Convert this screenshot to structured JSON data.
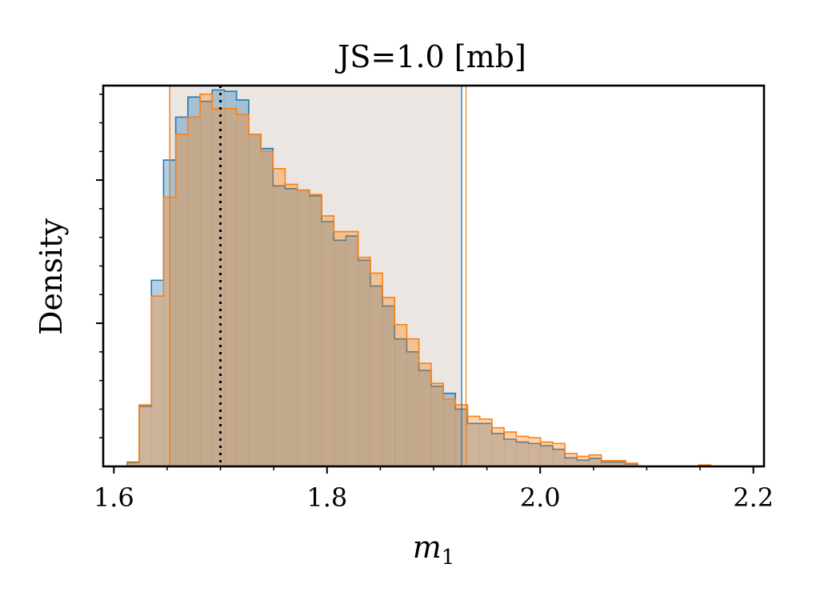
{
  "chart_data": {
    "type": "histogram",
    "title": "JS=1.0 [mb]",
    "xlabel": "m",
    "xlabel_subscript": "1",
    "ylabel": "Density",
    "xlim": [
      1.59,
      2.21
    ],
    "ylim": [
      0,
      13.3
    ],
    "xticks": [
      {
        "value": 1.6,
        "label": "1.6"
      },
      {
        "value": 1.8,
        "label": "1.8"
      },
      {
        "value": 2.0,
        "label": "2.0"
      },
      {
        "value": 2.2,
        "label": "2.2"
      }
    ],
    "x_minor_step": 0.05,
    "y_major_ticks": [
      5,
      10
    ],
    "y_minor_step": 1.0,
    "y_tick_labels_shown": false,
    "bin_start": 1.6124,
    "bin_width": 0.01141,
    "series": [
      {
        "color": "#1f77b4",
        "fill_opacity": 0.35,
        "values": [
          0.15,
          2.1,
          6.5,
          10.7,
          12.2,
          12.9,
          12.75,
          13.15,
          13.1,
          12.8,
          11.6,
          11.1,
          9.8,
          9.7,
          9.65,
          9.45,
          8.55,
          7.9,
          8.05,
          7.2,
          6.3,
          5.6,
          4.45,
          4.0,
          3.35,
          2.8,
          2.55,
          2.0,
          1.5,
          1.5,
          1.15,
          0.95,
          0.85,
          0.8,
          0.72,
          0.6,
          0.3,
          0.22,
          0.28,
          0.15,
          0.15,
          0.09,
          0.0,
          0.0,
          0.0,
          0.0,
          0.0,
          0.02
        ]
      },
      {
        "color": "#ff7f0e",
        "fill_opacity": 0.35,
        "values": [
          0.12,
          2.15,
          5.95,
          9.4,
          11.6,
          12.2,
          13.0,
          12.5,
          12.5,
          12.3,
          11.6,
          11.0,
          10.4,
          9.85,
          9.65,
          9.5,
          8.75,
          8.2,
          8.2,
          7.3,
          6.75,
          5.9,
          4.95,
          4.45,
          3.6,
          2.9,
          2.35,
          2.15,
          1.75,
          1.65,
          1.35,
          1.2,
          1.05,
          1.0,
          0.85,
          0.8,
          0.45,
          0.35,
          0.4,
          0.2,
          0.2,
          0.11,
          0.0,
          0.0,
          0.0,
          0.0,
          0.0,
          0.05
        ]
      }
    ],
    "reference_line": {
      "x": 1.7,
      "style": "dotted",
      "color": "#000000"
    },
    "credible_intervals": [
      {
        "color": "#1f77b4",
        "low": 1.6524,
        "high": 1.9264
      },
      {
        "color": "#ff7f0e",
        "low": 1.6524,
        "high": 1.9304
      }
    ],
    "shaded_region": {
      "low": 1.6524,
      "high": 1.9264,
      "color": "#d7cec4",
      "opacity": 0.5
    },
    "grid": false,
    "legend": "none"
  }
}
